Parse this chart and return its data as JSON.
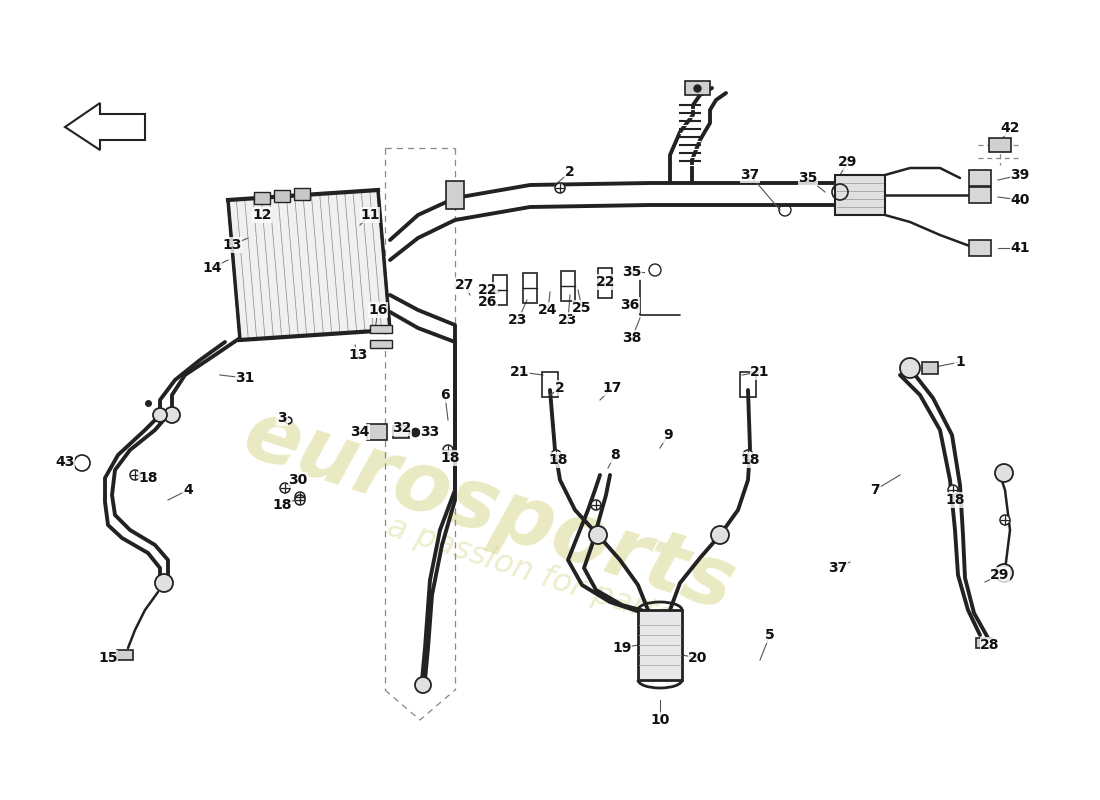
{
  "background_color": "#ffffff",
  "line_color": "#222222",
  "label_color": "#111111",
  "label_font_size": 10,
  "wm1_color": "#d8d890",
  "wm2_color": "#c8c870"
}
